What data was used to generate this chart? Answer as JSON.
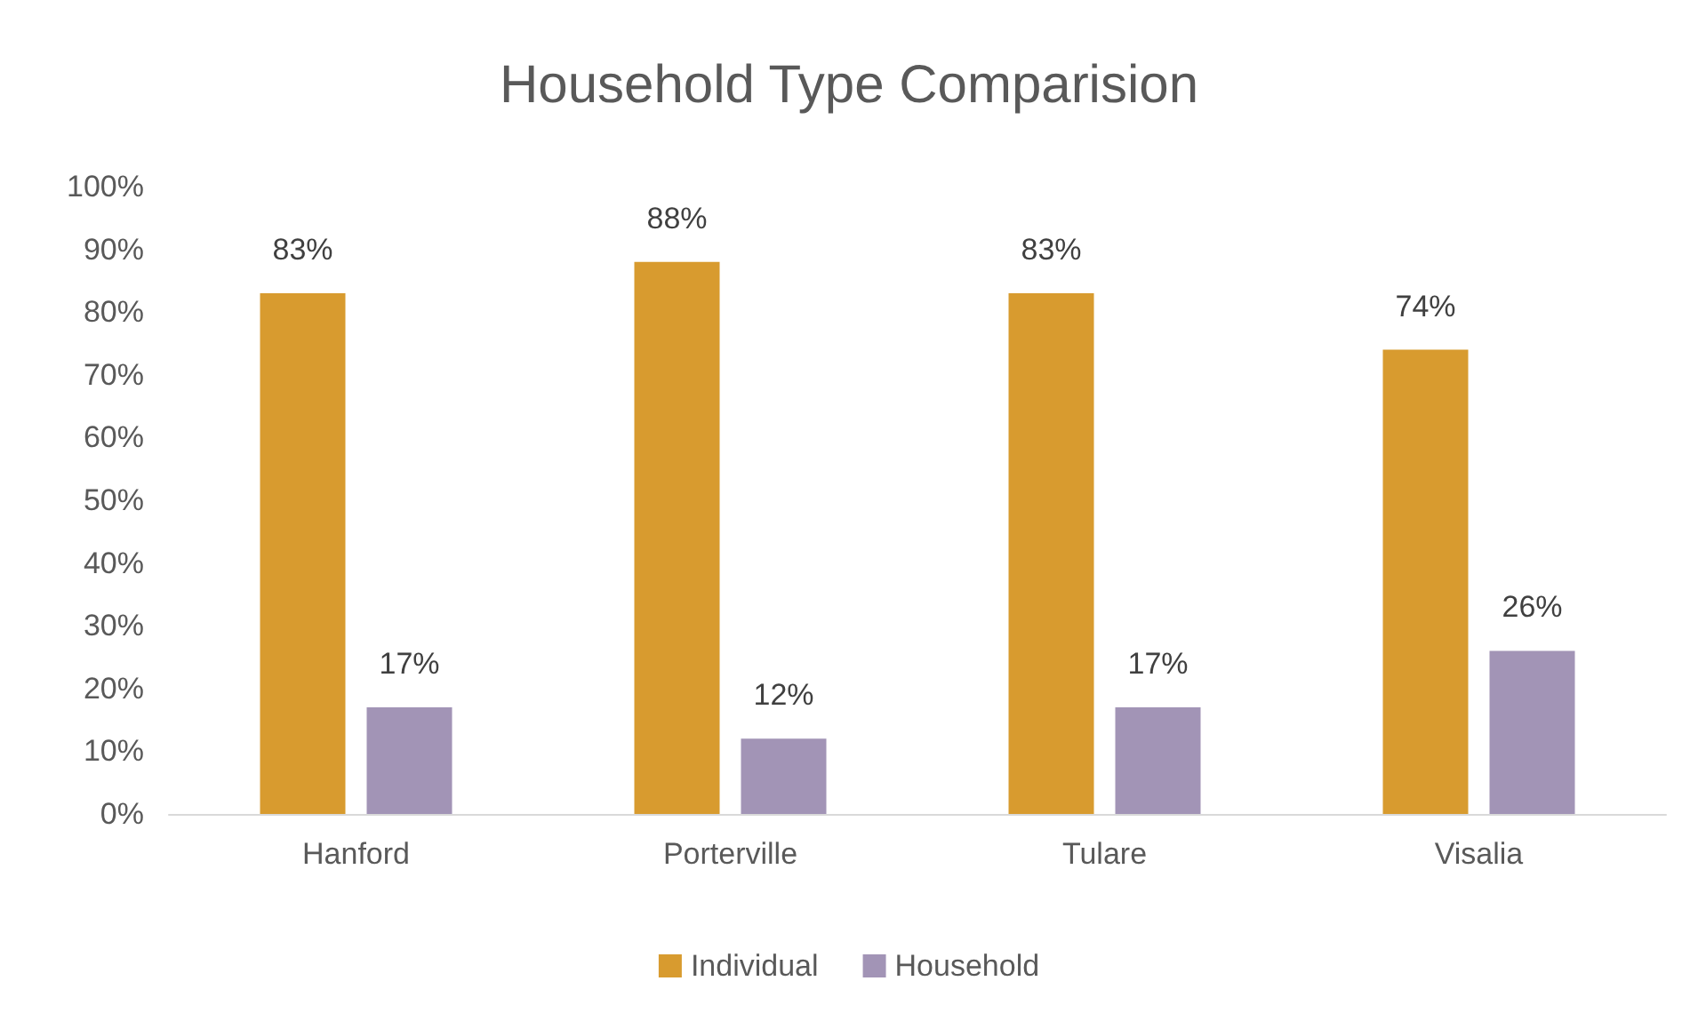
{
  "chart_data": {
    "type": "bar",
    "title": "Household Type Comparision",
    "categories": [
      "Hanford",
      "Porterville",
      "Tulare",
      "Visalia"
    ],
    "series": [
      {
        "name": "Individual",
        "color": "#d89b2f",
        "values": [
          83,
          88,
          83,
          74
        ],
        "value_labels": [
          "83%",
          "88%",
          "83%",
          "74%"
        ]
      },
      {
        "name": "Household",
        "color": "#a294b6",
        "values": [
          17,
          12,
          17,
          26
        ],
        "value_labels": [
          "17%",
          "12%",
          "17%",
          "26%"
        ]
      }
    ],
    "ylim": [
      0,
      100
    ],
    "yticks": [
      {
        "value": 0,
        "label": "0%"
      },
      {
        "value": 10,
        "label": "10%"
      },
      {
        "value": 20,
        "label": "20%"
      },
      {
        "value": 30,
        "label": "30%"
      },
      {
        "value": 40,
        "label": "40%"
      },
      {
        "value": 50,
        "label": "50%"
      },
      {
        "value": 60,
        "label": "60%"
      },
      {
        "value": 70,
        "label": "70%"
      },
      {
        "value": 80,
        "label": "80%"
      },
      {
        "value": 90,
        "label": "90%"
      },
      {
        "value": 100,
        "label": "100%"
      }
    ],
    "grid": false,
    "legend": "bottom"
  }
}
